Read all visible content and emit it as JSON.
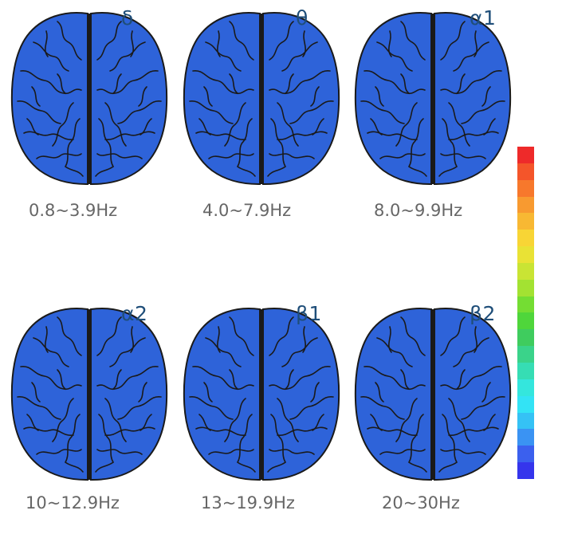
{
  "panels": [
    {
      "symbol": "δ",
      "range": "0.8~3.9Hz"
    },
    {
      "symbol": "θ",
      "range": "4.0~7.9Hz"
    },
    {
      "symbol": "α1",
      "range": "8.0~9.9Hz"
    },
    {
      "symbol": "α2",
      "range": "10~12.9Hz"
    },
    {
      "symbol": "β1",
      "range": "13~19.9Hz"
    },
    {
      "symbol": "β2",
      "range": "20~30Hz"
    }
  ],
  "colors": {
    "brain_fill": "#2e63d9",
    "brain_outline": "#1a1a1a",
    "symbol_text": "#1f4e79",
    "label_text": "#666666",
    "colorbar": [
      "#ee2a2a",
      "#f4552a",
      "#f7782c",
      "#f89a30",
      "#f8b833",
      "#f8d535",
      "#e9e235",
      "#c9e434",
      "#a3e232",
      "#74dd33",
      "#4fd63b",
      "#3fcc5e",
      "#3ad38a",
      "#36ddb4",
      "#34e6dd",
      "#33e3f5",
      "#35c2f5",
      "#3a93f3",
      "#3b60ee",
      "#3535ec"
    ]
  }
}
